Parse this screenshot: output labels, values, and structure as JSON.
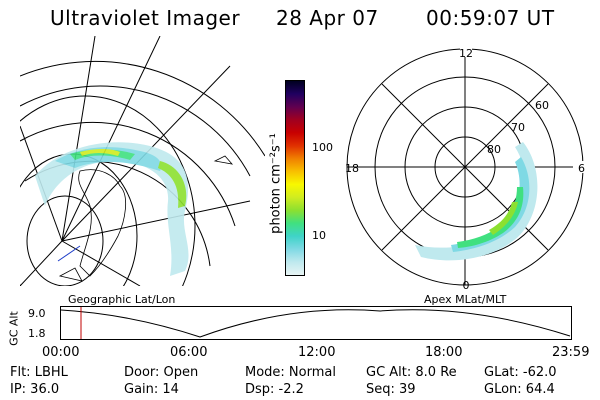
{
  "header": {
    "title": "Ultraviolet Imager",
    "date": "28 Apr 07",
    "time": "00:59:07 UT"
  },
  "colorbar": {
    "unit_label": "photon cm⁻²s⁻¹",
    "tick_100": "100",
    "tick_10": "10",
    "colors": [
      "#e8f4f4",
      "#bfe9ee",
      "#7fd9e4",
      "#3fd3c8",
      "#40e080",
      "#8ce030",
      "#d0ec20",
      "#f8f800",
      "#f8c000",
      "#f08000",
      "#e03000",
      "#c80000",
      "#a00020",
      "#600050",
      "#200060",
      "#000020"
    ]
  },
  "polar_plot": {
    "labels": {
      "top": "12",
      "left": "18",
      "right": "6",
      "bottom": "0",
      "r60": "60",
      "r70": "70",
      "r80": "80"
    }
  },
  "map_plot": {},
  "timeline": {
    "ylabel": "GC Alt",
    "y_max": "9.0",
    "y_min": "1.8",
    "left_title": "Geographic Lat/Lon",
    "right_title": "Apex MLat/MLT",
    "x_ticks": [
      "00:00",
      "06:00",
      "12:00",
      "18:00",
      "23:59"
    ],
    "marker_color": "#c00000"
  },
  "info": {
    "flt": "Flt: LBHL",
    "ip": "IP: 36.0",
    "door": "Door: Open",
    "gain": "Gain: 14",
    "mode": "Mode: Normal",
    "dsp": "Dsp:     -2.2",
    "gc_alt": "GC Alt: 8.0 Re",
    "seq": "Seq: 39",
    "glat": "GLat:  -62.0",
    "glon": "GLon:  64.4"
  }
}
